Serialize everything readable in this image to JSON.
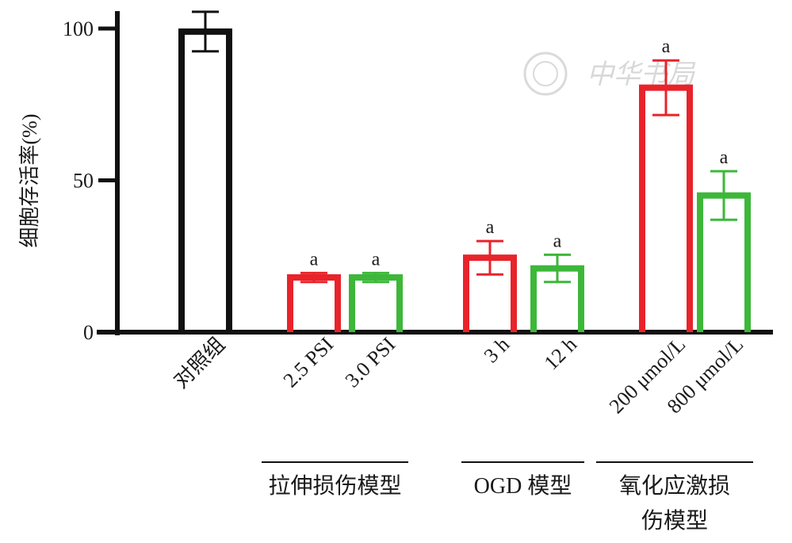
{
  "chart_data": {
    "type": "bar",
    "ylabel": "细胞存活率(%)",
    "ylim": [
      0,
      100
    ],
    "yticks": [
      0,
      50,
      100
    ],
    "grid": false,
    "categories": [
      "对照组",
      "2.5 PSI",
      "3.0 PSI",
      "3 h",
      "12 h",
      "200 μmol/L",
      "800 μmol/L"
    ],
    "values": [
      99,
      18,
      18,
      24.5,
      21,
      80.5,
      45
    ],
    "errors": [
      6.5,
      1.5,
      1.5,
      5.5,
      4.5,
      9,
      8
    ],
    "significance": [
      "",
      "a",
      "a",
      "a",
      "a",
      "a",
      "a"
    ],
    "bar_colors": [
      "#111111",
      "#e8232b",
      "#3db73a",
      "#e8232b",
      "#3db73a",
      "#e8232b",
      "#3db73a"
    ],
    "groups": [
      {
        "label_lines": [
          "拉伸损伤模型"
        ],
        "members": [
          1,
          2
        ]
      },
      {
        "label_lines": [
          "OGD 模型"
        ],
        "members": [
          3,
          4
        ]
      },
      {
        "label_lines": [
          "氧化应激损",
          "伤模型"
        ],
        "members": [
          5,
          6
        ]
      }
    ],
    "watermark": "中华书局"
  }
}
